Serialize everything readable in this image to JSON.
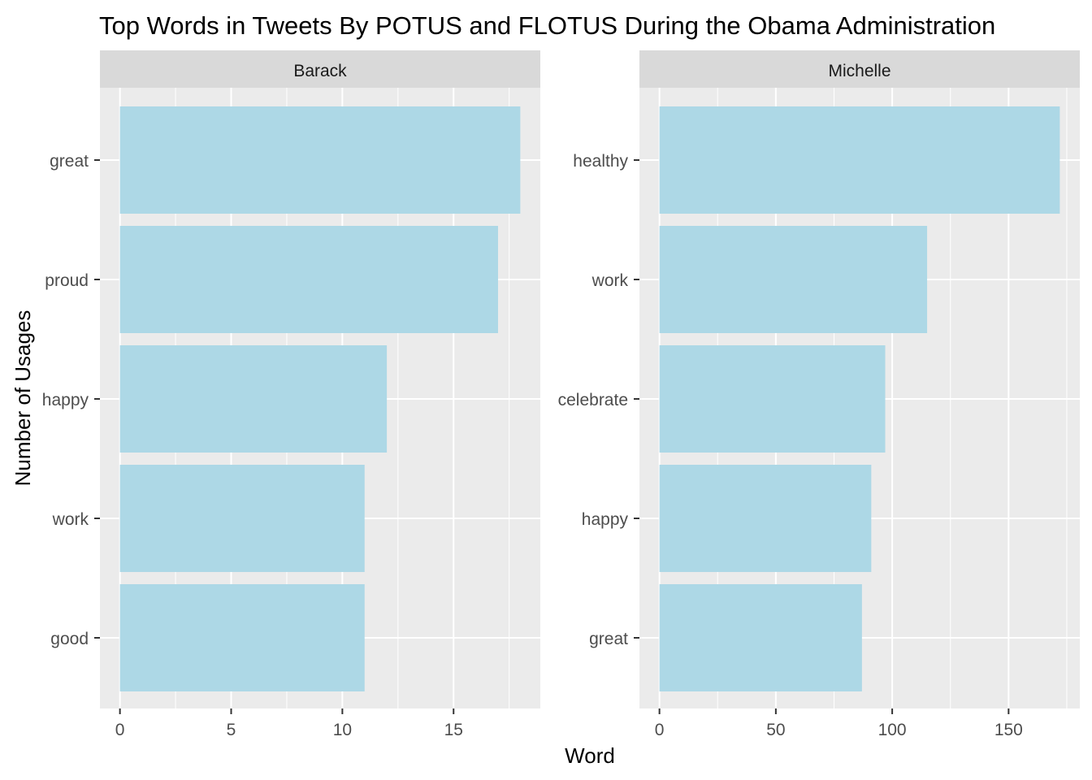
{
  "chart_data": {
    "type": "bar",
    "orientation": "horizontal",
    "title": "Top Words in Tweets By POTUS and FLOTUS During the Obama Administration",
    "xlabel": "Word",
    "ylabel": "Number of Usages",
    "colors": {
      "bar": "#add8e6",
      "panel_background": "#ebebeb",
      "grid": "#ffffff",
      "strip_background": "#d9d9d9",
      "tick": "#333333"
    },
    "facets": [
      {
        "name": "Barack",
        "categories": [
          "great",
          "proud",
          "happy",
          "work",
          "good"
        ],
        "values": [
          18,
          17,
          12,
          11,
          11
        ],
        "xlim": [
          -0.9,
          18.9
        ],
        "ticks": [
          0,
          5,
          10,
          15
        ],
        "tick_labels": [
          "0",
          "5",
          "10",
          "15"
        ]
      },
      {
        "name": "Michelle",
        "categories": [
          "healthy",
          "work",
          "celebrate",
          "happy",
          "great"
        ],
        "values": [
          172,
          115,
          97,
          91,
          87
        ],
        "xlim": [
          -8.6,
          180.6
        ],
        "ticks": [
          0,
          50,
          100,
          150
        ],
        "tick_labels": [
          "0",
          "50",
          "100",
          "150"
        ]
      }
    ]
  }
}
